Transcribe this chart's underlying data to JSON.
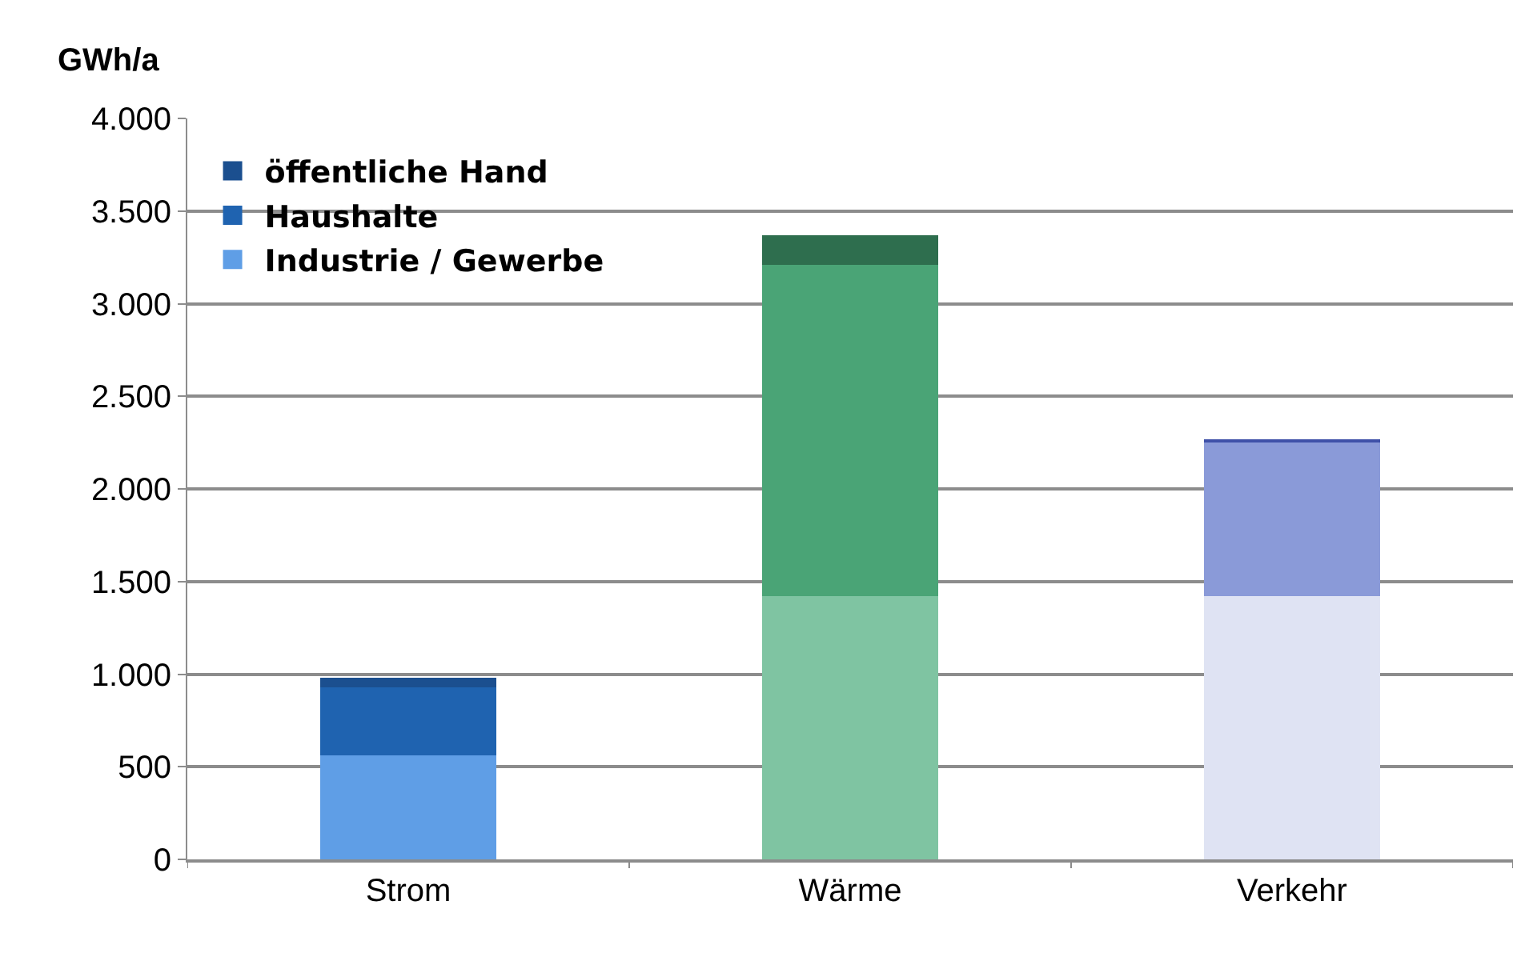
{
  "chart_data": {
    "type": "bar",
    "stacked": true,
    "ylabel": "GWh/a",
    "categories": [
      "Strom",
      "Wärme",
      "Verkehr"
    ],
    "series": [
      {
        "name": "Industrie / Gewerbe",
        "colors": [
          "#5f9ee6",
          "#7fc4a2",
          "#dfe3f3"
        ],
        "values": [
          560,
          1420,
          1420
        ]
      },
      {
        "name": "Haushalte",
        "colors": [
          "#1f63b0",
          "#4aa476",
          "#8a9ad8"
        ],
        "values": [
          370,
          1790,
          830
        ]
      },
      {
        "name": "öffentliche Hand",
        "colors": [
          "#1b4f8f",
          "#2e6e4e",
          "#3f51a8"
        ],
        "values": [
          50,
          160,
          20
        ]
      }
    ],
    "ylim": [
      0,
      4000
    ],
    "yticks": [
      0,
      {
        "value": 500,
        "label": "500"
      },
      {
        "value": 1000,
        "label": "1.000"
      },
      {
        "value": 1500,
        "label": "1.500"
      },
      {
        "value": 2000,
        "label": "2.000"
      },
      {
        "value": 2500,
        "label": "2.500"
      },
      {
        "value": 3000,
        "label": "3.000"
      },
      {
        "value": 3500,
        "label": "3.500"
      },
      {
        "value": 4000,
        "label": "4.000"
      }
    ],
    "grid": "y",
    "legend": "top left"
  }
}
